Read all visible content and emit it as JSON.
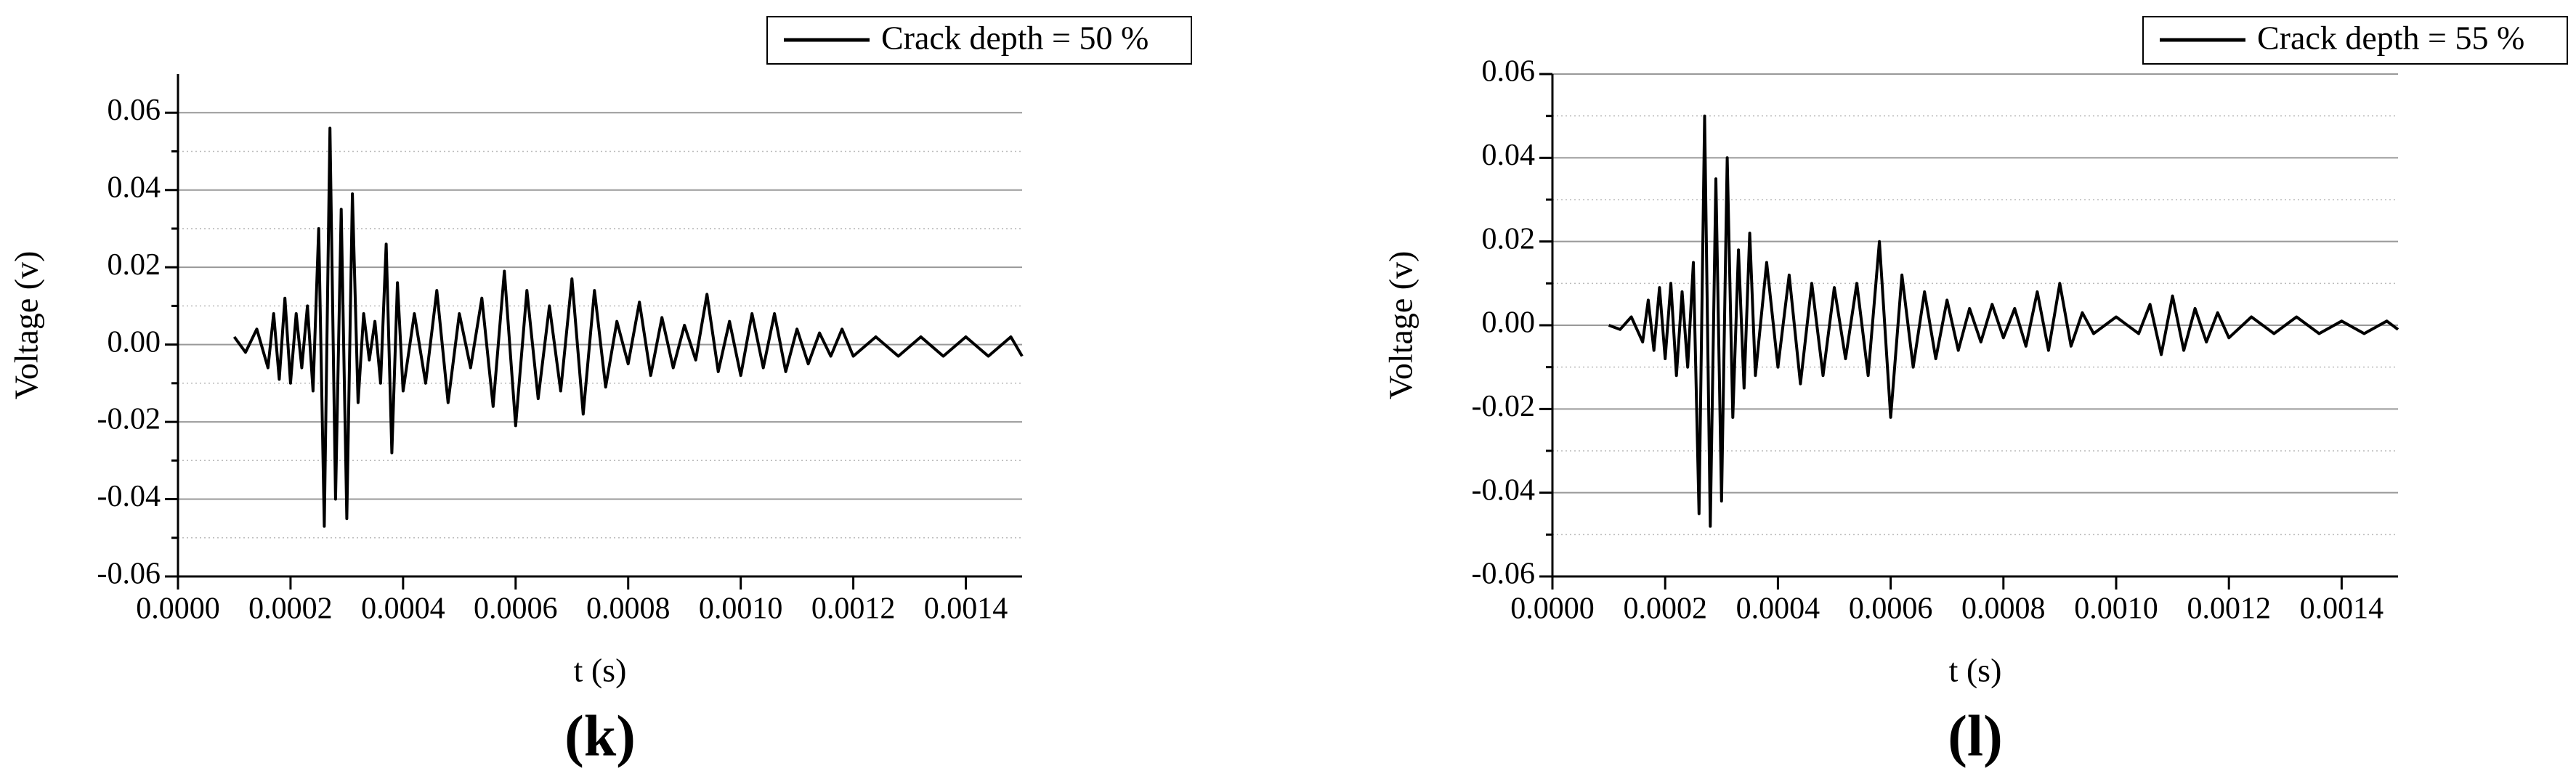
{
  "chart_data": [
    {
      "type": "line",
      "panel_label": "(k)",
      "xlabel": "t (s)",
      "ylabel": "Voltage (v)",
      "grid": true,
      "legend": "top-right",
      "xlim": [
        0,
        0.0015
      ],
      "ylim": [
        -0.06,
        0.07
      ],
      "xticks": [
        {
          "value": 0,
          "label": "0.0000"
        },
        0.0002,
        0.0004,
        0.0006,
        0.0008,
        {
          "value": 0.001,
          "label": "0.0010"
        },
        0.0012,
        0.0014
      ],
      "yticks": [
        -0.06,
        -0.04,
        -0.02,
        {
          "value": 0,
          "label": "0.00"
        },
        0.02,
        0.04,
        0.06
      ],
      "minor_yticks": [
        -0.05,
        -0.03,
        -0.01,
        0.01,
        0.03,
        0.05
      ],
      "x": [
        0.0001,
        0.00012,
        0.00014,
        0.00016,
        0.00017,
        0.00018,
        0.00019,
        0.0002,
        0.00021,
        0.00022,
        0.00023,
        0.00024,
        0.00025,
        0.00026,
        0.00027,
        0.00028,
        0.00029,
        0.0003,
        0.00031,
        0.00032,
        0.00033,
        0.00034,
        0.00035,
        0.00036,
        0.00037,
        0.00038,
        0.00039,
        0.0004,
        0.00042,
        0.00044,
        0.00046,
        0.00048,
        0.0005,
        0.00052,
        0.00054,
        0.00056,
        0.00058,
        0.0006,
        0.00062,
        0.00064,
        0.00066,
        0.00068,
        0.0007,
        0.00072,
        0.00074,
        0.00076,
        0.00078,
        0.0008,
        0.00082,
        0.00084,
        0.00086,
        0.00088,
        0.0009,
        0.00092,
        0.00094,
        0.00096,
        0.00098,
        0.001,
        0.00102,
        0.00104,
        0.00106,
        0.00108,
        0.0011,
        0.00112,
        0.00114,
        0.00116,
        0.00118,
        0.0012,
        0.00124,
        0.00128,
        0.00132,
        0.00136,
        0.0014,
        0.00144,
        0.00148,
        0.0015
      ],
      "series": [
        {
          "name": "Crack depth = 50 %",
          "color": "#000000",
          "values": [
            0.002,
            -0.002,
            0.004,
            -0.006,
            0.008,
            -0.009,
            0.012,
            -0.01,
            0.008,
            -0.006,
            0.01,
            -0.012,
            0.03,
            -0.047,
            0.056,
            -0.04,
            0.035,
            -0.045,
            0.039,
            -0.015,
            0.008,
            -0.004,
            0.006,
            -0.01,
            0.026,
            -0.028,
            0.016,
            -0.012,
            0.008,
            -0.01,
            0.014,
            -0.015,
            0.008,
            -0.006,
            0.012,
            -0.016,
            0.019,
            -0.021,
            0.014,
            -0.014,
            0.01,
            -0.012,
            0.017,
            -0.018,
            0.014,
            -0.011,
            0.006,
            -0.005,
            0.011,
            -0.008,
            0.007,
            -0.006,
            0.005,
            -0.004,
            0.013,
            -0.007,
            0.006,
            -0.008,
            0.008,
            -0.006,
            0.008,
            -0.007,
            0.004,
            -0.005,
            0.003,
            -0.003,
            0.004,
            -0.003,
            0.002,
            -0.003,
            0.002,
            -0.003,
            0.002,
            -0.003,
            0.002,
            -0.003
          ]
        }
      ]
    },
    {
      "type": "line",
      "panel_label": "(l)",
      "xlabel": "t (s)",
      "ylabel": "Voltage (v)",
      "grid": true,
      "legend": "top-right",
      "xlim": [
        0,
        0.0015
      ],
      "ylim": [
        -0.06,
        0.06
      ],
      "xticks": [
        {
          "value": 0,
          "label": "0.0000"
        },
        0.0002,
        0.0004,
        0.0006,
        0.0008,
        {
          "value": 0.001,
          "label": "0.0010"
        },
        0.0012,
        0.0014
      ],
      "yticks": [
        -0.06,
        -0.04,
        -0.02,
        {
          "value": 0,
          "label": "0.00"
        },
        0.02,
        0.04,
        0.06
      ],
      "minor_yticks": [
        -0.05,
        -0.03,
        -0.01,
        0.01,
        0.03,
        0.05
      ],
      "x": [
        0.0001,
        0.00012,
        0.00014,
        0.00016,
        0.00017,
        0.00018,
        0.00019,
        0.0002,
        0.00021,
        0.00022,
        0.00023,
        0.00024,
        0.00025,
        0.00026,
        0.00027,
        0.00028,
        0.00029,
        0.0003,
        0.00031,
        0.00032,
        0.00033,
        0.00034,
        0.00035,
        0.00036,
        0.00038,
        0.0004,
        0.00042,
        0.00044,
        0.00046,
        0.00048,
        0.0005,
        0.00052,
        0.00054,
        0.00056,
        0.00058,
        0.0006,
        0.00062,
        0.00064,
        0.00066,
        0.00068,
        0.0007,
        0.00072,
        0.00074,
        0.00076,
        0.00078,
        0.0008,
        0.00082,
        0.00084,
        0.00086,
        0.00088,
        0.0009,
        0.00092,
        0.00094,
        0.00096,
        0.001,
        0.00104,
        0.00106,
        0.00108,
        0.0011,
        0.00112,
        0.00114,
        0.00116,
        0.00118,
        0.0012,
        0.00124,
        0.00128,
        0.00132,
        0.00136,
        0.0014,
        0.00144,
        0.00148,
        0.0015
      ],
      "series": [
        {
          "name": "Crack depth = 55 %",
          "color": "#000000",
          "values": [
            0,
            -0.001,
            0.002,
            -0.004,
            0.006,
            -0.006,
            0.009,
            -0.008,
            0.01,
            -0.012,
            0.008,
            -0.01,
            0.015,
            -0.045,
            0.05,
            -0.048,
            0.035,
            -0.042,
            0.04,
            -0.022,
            0.018,
            -0.015,
            0.022,
            -0.012,
            0.015,
            -0.01,
            0.012,
            -0.014,
            0.01,
            -0.012,
            0.009,
            -0.008,
            0.01,
            -0.012,
            0.02,
            -0.022,
            0.012,
            -0.01,
            0.008,
            -0.008,
            0.006,
            -0.006,
            0.004,
            -0.004,
            0.005,
            -0.003,
            0.004,
            -0.005,
            0.008,
            -0.006,
            0.01,
            -0.005,
            0.003,
            -0.002,
            0.002,
            -0.002,
            0.005,
            -0.007,
            0.007,
            -0.006,
            0.004,
            -0.004,
            0.003,
            -0.003,
            0.002,
            -0.002,
            0.002,
            -0.002,
            0.001,
            -0.002,
            0.001,
            -0.001
          ]
        }
      ]
    }
  ]
}
